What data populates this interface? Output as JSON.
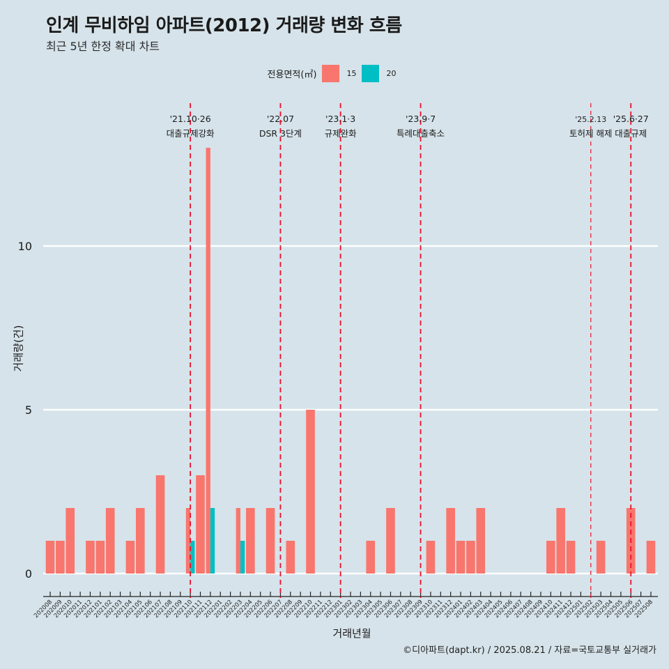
{
  "header": {
    "title": "인계 무비하임 아파트(2012) 거래량 변화 흐름",
    "subtitle": "최근 5년 한정 확대 차트"
  },
  "legend": {
    "title": "전용면적(㎡)",
    "items": [
      {
        "label": "15",
        "color": "#F8766D"
      },
      {
        "label": "20",
        "color": "#00BFC4"
      }
    ]
  },
  "caption": "©디아파트(dapt.kr) / 2025.08.21 / 자료=국토교통부 실거래가",
  "chart_data": {
    "type": "bar",
    "title": "인계 무비하임 아파트(2012) 거래량 변화 흐름",
    "subtitle": "최근 5년 한정 확대 차트",
    "xlabel": "거래년월",
    "ylabel": "거래량(건)",
    "ylim": [
      0,
      13
    ],
    "yticks": [
      0,
      5,
      10
    ],
    "grid": true,
    "legend_position": "top",
    "categories": [
      "202008",
      "202009",
      "202010",
      "202011",
      "202012",
      "202101",
      "202102",
      "202103",
      "202104",
      "202105",
      "202106",
      "202107",
      "202108",
      "202109",
      "202110",
      "202111",
      "202112",
      "202201",
      "202202",
      "202203",
      "202204",
      "202205",
      "202206",
      "202207",
      "202208",
      "202209",
      "202210",
      "202211",
      "202212",
      "202301",
      "202302",
      "202303",
      "202304",
      "202305",
      "202306",
      "202307",
      "202308",
      "202309",
      "202310",
      "202311",
      "202312",
      "202401",
      "202402",
      "202403",
      "202404",
      "202405",
      "202406",
      "202407",
      "202408",
      "202409",
      "202410",
      "202411",
      "202412",
      "202501",
      "202502",
      "202503",
      "202504",
      "202505",
      "202506",
      "202507",
      "202508"
    ],
    "series": [
      {
        "name": "15",
        "color": "#F8766D",
        "values": [
          1,
          1,
          2,
          0,
          1,
          1,
          2,
          0,
          1,
          2,
          0,
          3,
          0,
          0,
          2,
          3,
          13,
          0,
          0,
          2,
          2,
          0,
          2,
          0,
          1,
          0,
          5,
          0,
          0,
          0,
          0,
          0,
          1,
          0,
          2,
          0,
          0,
          0,
          1,
          0,
          2,
          1,
          1,
          2,
          0,
          0,
          0,
          0,
          0,
          0,
          1,
          2,
          1,
          0,
          0,
          1,
          0,
          0,
          2,
          0,
          1
        ]
      },
      {
        "name": "20",
        "color": "#00BFC4",
        "values": [
          0,
          0,
          0,
          0,
          0,
          0,
          0,
          0,
          0,
          0,
          0,
          0,
          0,
          0,
          1,
          0,
          2,
          0,
          0,
          1,
          0,
          0,
          0,
          0,
          0,
          0,
          0,
          0,
          0,
          0,
          0,
          0,
          0,
          0,
          0,
          0,
          0,
          0,
          0,
          0,
          0,
          0,
          0,
          0,
          0,
          0,
          0,
          0,
          0,
          0,
          0,
          0,
          0,
          0,
          0,
          0,
          0,
          0,
          0,
          0,
          0
        ]
      }
    ],
    "annotations": [
      {
        "x": "202110",
        "date": "'21.10·26",
        "label": "대출규제강화",
        "style": "bold-dash"
      },
      {
        "x": "202207",
        "date": "'22.07",
        "label": "DSR 3단계",
        "style": "bold-dash"
      },
      {
        "x": "202301",
        "date": "'23.1·3",
        "label": "규제완화",
        "style": "bold-dash"
      },
      {
        "x": "202309",
        "date": "'23.9·7",
        "label": "특례대출축소",
        "style": "bold-dash"
      },
      {
        "x": "202502",
        "date": "'25.2.13",
        "label": "토허제 해제",
        "style": "thin-dash"
      },
      {
        "x": "202506",
        "date": "'25.6·27",
        "label": "대출규제",
        "style": "bold-dash"
      }
    ]
  }
}
